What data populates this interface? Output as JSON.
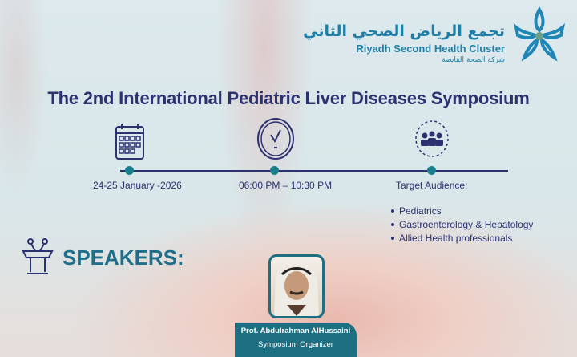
{
  "logo": {
    "arabic": "تجمع الرياض الصحي الثاني",
    "english": "Riyadh Second Health Cluster",
    "subtitle": "شركة الصحة القابضة"
  },
  "title": "The 2nd International Pediatric Liver Diseases Symposium",
  "timeline": {
    "date": "24-25 January -2026",
    "time": "06:00 PM – 10:30 PM",
    "audience_label": "Target Audience:",
    "audience": [
      "Pediatrics",
      "Gastroenterology & Hepatology",
      "Allied Health professionals"
    ]
  },
  "speakers": {
    "heading": "SPEAKERS:",
    "items": [
      {
        "name": "Prof. Abdulrahman AlHussaini",
        "role": "Symposium Organizer"
      }
    ]
  },
  "colors": {
    "navy": "#2c3170",
    "teal": "#1d6f82",
    "logo_blue": "#1f7fa7"
  }
}
